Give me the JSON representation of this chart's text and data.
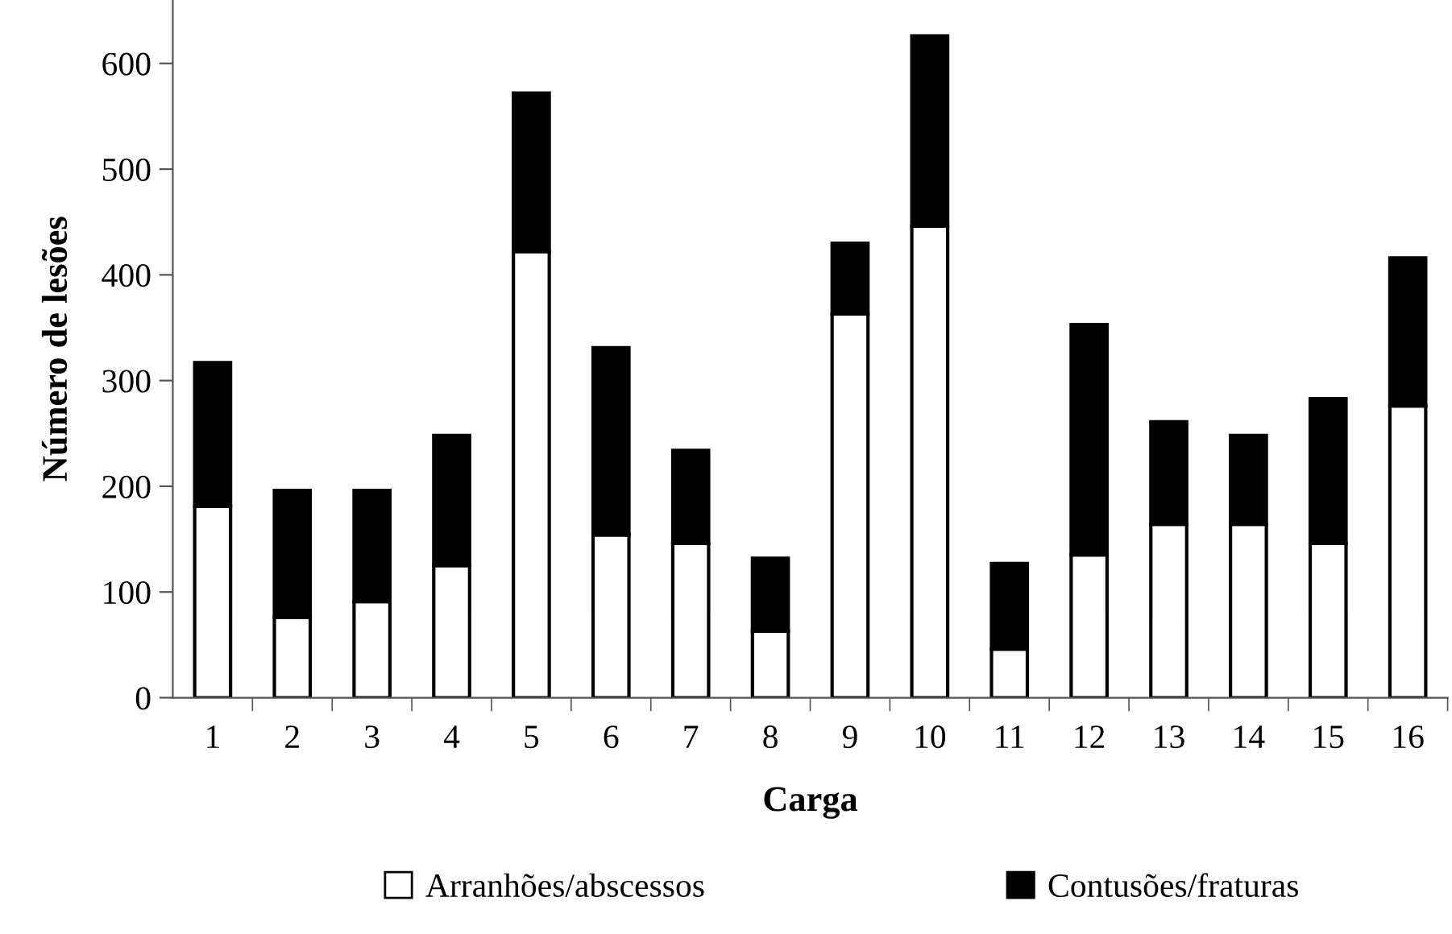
{
  "chart_data": {
    "type": "bar",
    "stacked": true,
    "xlabel": "Carga",
    "ylabel": "Número de lesões",
    "categories": [
      "1",
      "2",
      "3",
      "4",
      "5",
      "6",
      "7",
      "8",
      "9",
      "10",
      "11",
      "12",
      "13",
      "14",
      "15",
      "16"
    ],
    "series": [
      {
        "name": "Arranhões/abscessos",
        "color": "#ffffff",
        "values": [
          181,
          76,
          91,
          125,
          422,
          154,
          146,
          63,
          363,
          446,
          46,
          135,
          164,
          164,
          146,
          276
        ]
      },
      {
        "name": "Contusões/fraturas",
        "color": "#000000",
        "values": [
          136,
          120,
          105,
          123,
          150,
          177,
          88,
          69,
          67,
          180,
          81,
          218,
          97,
          84,
          137,
          140
        ]
      }
    ],
    "ylim": [
      0,
      660
    ],
    "yticks": [
      0,
      100,
      200,
      300,
      400,
      500,
      600
    ],
    "grid": false,
    "legend": "bottom"
  }
}
